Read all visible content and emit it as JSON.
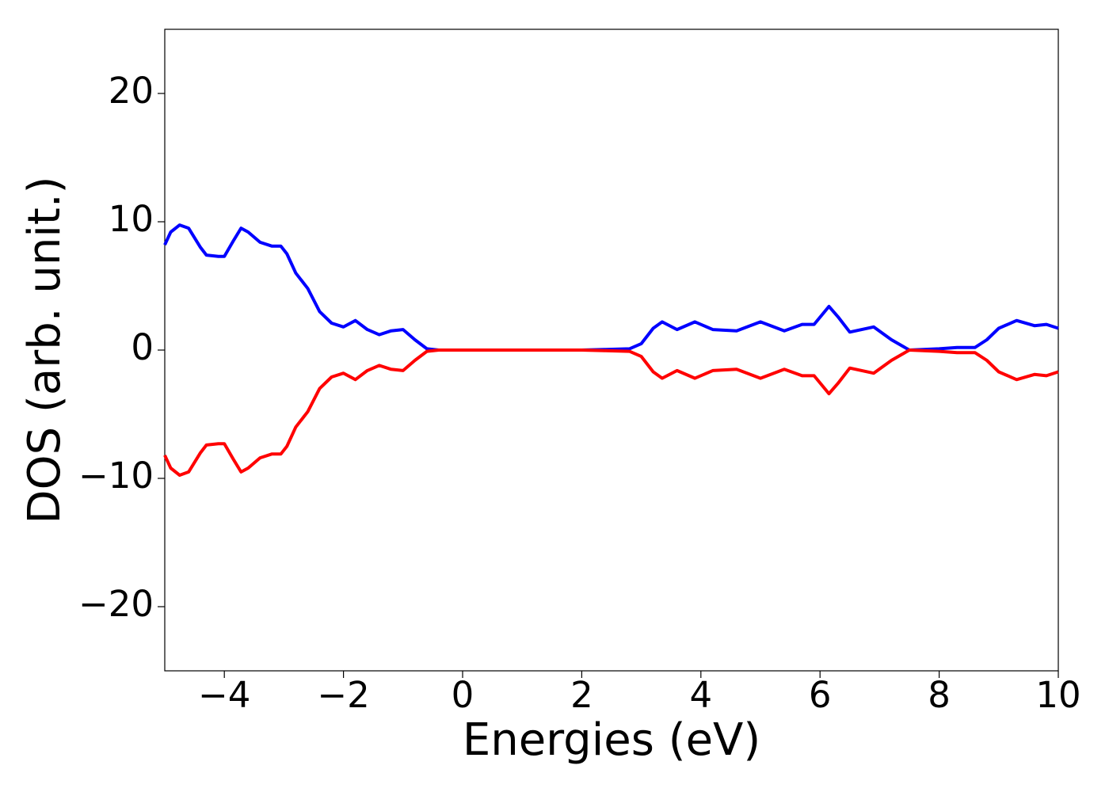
{
  "chart_data": {
    "type": "line",
    "xlabel": "Energies (eV)",
    "ylabel": "DOS (arb. unit.)",
    "x": [
      -5,
      -4.9,
      -4.75,
      -4.6,
      -4.4,
      -4.3,
      -4.1,
      -4.0,
      -3.85,
      -3.72,
      -3.6,
      -3.4,
      -3.2,
      -3.05,
      -2.95,
      -2.8,
      -2.6,
      -2.4,
      -2.2,
      -2.0,
      -1.8,
      -1.6,
      -1.4,
      -1.2,
      -1.0,
      -0.8,
      -0.6,
      -0.4,
      0,
      2.0,
      2.4,
      2.8,
      3.0,
      3.2,
      3.35,
      3.6,
      3.9,
      4.2,
      4.6,
      5.0,
      5.4,
      5.7,
      5.9,
      6.15,
      6.3,
      6.5,
      6.9,
      7.2,
      7.5,
      8.0,
      8.3,
      8.6,
      8.8,
      9.0,
      9.3,
      9.6,
      9.8,
      10
    ],
    "series": [
      {
        "color": "#0000ff",
        "values": [
          8.2,
          9.2,
          9.75,
          9.5,
          8.0,
          7.4,
          7.3,
          7.3,
          8.5,
          9.5,
          9.2,
          8.4,
          8.1,
          8.1,
          7.5,
          6.0,
          4.8,
          3.0,
          2.1,
          1.8,
          2.3,
          1.6,
          1.2,
          1.5,
          1.6,
          0.8,
          0.1,
          0,
          0,
          0,
          0.05,
          0.1,
          0.5,
          1.7,
          2.2,
          1.6,
          2.2,
          1.6,
          1.5,
          2.2,
          1.5,
          2.0,
          2.0,
          3.4,
          2.6,
          1.4,
          1.8,
          0.8,
          0,
          0.1,
          0.2,
          0.2,
          0.8,
          1.7,
          2.3,
          1.9,
          2.0,
          1.7
        ]
      },
      {
        "color": "#ff0000",
        "values": [
          -8.2,
          -9.2,
          -9.75,
          -9.5,
          -8.0,
          -7.4,
          -7.3,
          -7.3,
          -8.5,
          -9.5,
          -9.2,
          -8.4,
          -8.1,
          -8.1,
          -7.5,
          -6.0,
          -4.8,
          -3.0,
          -2.1,
          -1.8,
          -2.3,
          -1.6,
          -1.2,
          -1.5,
          -1.6,
          -0.8,
          -0.1,
          0,
          0,
          0,
          -0.05,
          -0.1,
          -0.5,
          -1.7,
          -2.2,
          -1.6,
          -2.2,
          -1.6,
          -1.5,
          -2.2,
          -1.5,
          -2.0,
          -2.0,
          -3.4,
          -2.6,
          -1.4,
          -1.8,
          -0.8,
          0,
          -0.1,
          -0.2,
          -0.2,
          -0.8,
          -1.7,
          -2.3,
          -1.9,
          -2.0,
          -1.7
        ]
      }
    ],
    "xlim": [
      -5,
      10
    ],
    "xticks": [
      {
        "value": -4,
        "label": "−4"
      },
      {
        "value": -2,
        "label": "−2"
      },
      0,
      2,
      4,
      6,
      8,
      10
    ],
    "ylim": [
      -25,
      25
    ],
    "yticks": [
      {
        "value": -20,
        "label": "−20"
      },
      {
        "value": -10,
        "label": "−10"
      },
      0,
      10,
      20
    ],
    "grid": false
  }
}
